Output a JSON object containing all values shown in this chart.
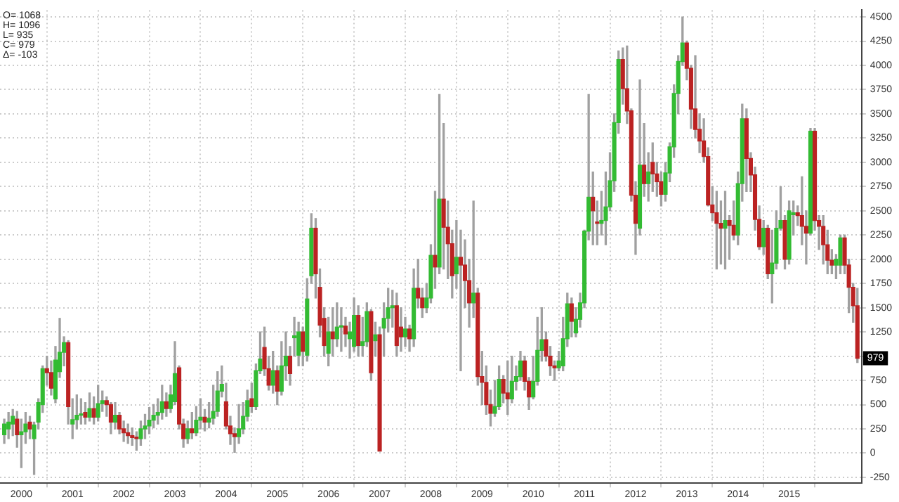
{
  "chart_data": {
    "type": "candlestick",
    "x": [
      "1999-09",
      "1999-10",
      "1999-11",
      "1999-12",
      "2000-01",
      "2000-02",
      "2000-03",
      "2000-04",
      "2000-05",
      "2000-06",
      "2000-07",
      "2000-08",
      "2000-09",
      "2000-10",
      "2000-11",
      "2000-12",
      "2001-01",
      "2001-02",
      "2001-03",
      "2001-04",
      "2001-05",
      "2001-06",
      "2001-07",
      "2001-08",
      "2001-09",
      "2001-10",
      "2001-11",
      "2001-12",
      "2002-01",
      "2002-02",
      "2002-03",
      "2002-04",
      "2002-05",
      "2002-06",
      "2002-07",
      "2002-08",
      "2002-09",
      "2002-10",
      "2002-11",
      "2002-12",
      "2003-01",
      "2003-02",
      "2003-03",
      "2003-04",
      "2003-05",
      "2003-06",
      "2003-07",
      "2003-08",
      "2003-09",
      "2003-10",
      "2003-11",
      "2003-12",
      "2004-01",
      "2004-02",
      "2004-03",
      "2004-04",
      "2004-05",
      "2004-06",
      "2004-07",
      "2004-08",
      "2004-09",
      "2004-10",
      "2004-11",
      "2004-12",
      "2005-01",
      "2005-02",
      "2005-03",
      "2005-04",
      "2005-05",
      "2005-06",
      "2005-07",
      "2005-08",
      "2005-09",
      "2005-10",
      "2005-11",
      "2005-12",
      "2006-01",
      "2006-02",
      "2006-03",
      "2006-04",
      "2006-05",
      "2006-06",
      "2006-07",
      "2006-08",
      "2006-09",
      "2006-10",
      "2006-11",
      "2006-12",
      "2007-01",
      "2007-02",
      "2007-03",
      "2007-04",
      "2007-05",
      "2007-06",
      "2007-07",
      "2007-08",
      "2007-09",
      "2007-10",
      "2007-11",
      "2007-12",
      "2008-01",
      "2008-02",
      "2008-03",
      "2008-04",
      "2008-05",
      "2008-06",
      "2008-07",
      "2008-08",
      "2008-09",
      "2008-10",
      "2008-11",
      "2008-12",
      "2009-01",
      "2009-02",
      "2009-03",
      "2009-04",
      "2009-05",
      "2009-06",
      "2009-07",
      "2009-08",
      "2009-09",
      "2009-10",
      "2009-11",
      "2009-12",
      "2010-01",
      "2010-02",
      "2010-03",
      "2010-04",
      "2010-05",
      "2010-06",
      "2010-07",
      "2010-08",
      "2010-09",
      "2010-10",
      "2010-11",
      "2010-12",
      "2011-01",
      "2011-02",
      "2011-03",
      "2011-04",
      "2011-05",
      "2011-06",
      "2011-07",
      "2011-08",
      "2011-09",
      "2011-10",
      "2011-11",
      "2011-12",
      "2012-01",
      "2012-02",
      "2012-03",
      "2012-04",
      "2012-05",
      "2012-06",
      "2012-07",
      "2012-08",
      "2012-09",
      "2012-10",
      "2012-11",
      "2012-12",
      "2013-01",
      "2013-02",
      "2013-03",
      "2013-04",
      "2013-05",
      "2013-06",
      "2013-07",
      "2013-08",
      "2013-09",
      "2013-10",
      "2013-11",
      "2013-12",
      "2014-01",
      "2014-02",
      "2014-03",
      "2014-04",
      "2014-05",
      "2014-06",
      "2014-07",
      "2014-08",
      "2014-09",
      "2014-10",
      "2014-11",
      "2014-12",
      "2015-01",
      "2015-02",
      "2015-03",
      "2015-04",
      "2015-05",
      "2015-06",
      "2015-07",
      "2015-08",
      "2015-09",
      "2015-10",
      "2015-11",
      "2015-12",
      "2016-01",
      "2016-02",
      "2016-03",
      "2016-04",
      "2016-05"
    ],
    "ohlc": [
      [
        190,
        350,
        100,
        300
      ],
      [
        250,
        420,
        150,
        320
      ],
      [
        300,
        450,
        180,
        380
      ],
      [
        350,
        430,
        60,
        190
      ],
      [
        190,
        350,
        -150,
        220
      ],
      [
        220,
        420,
        100,
        300
      ],
      [
        320,
        380,
        150,
        250
      ],
      [
        150,
        320,
        -220,
        290
      ],
      [
        320,
        560,
        250,
        520
      ],
      [
        500,
        900,
        420,
        870
      ],
      [
        870,
        1000,
        700,
        830
      ],
      [
        830,
        950,
        600,
        670
      ],
      [
        560,
        1100,
        520,
        960
      ],
      [
        840,
        1390,
        780,
        1040
      ],
      [
        1040,
        1200,
        900,
        1140
      ],
      [
        1140,
        1160,
        300,
        480
      ],
      [
        300,
        560,
        150,
        345
      ],
      [
        345,
        600,
        250,
        390
      ],
      [
        390,
        560,
        300,
        400
      ],
      [
        420,
        520,
        300,
        370
      ],
      [
        370,
        620,
        330,
        460
      ],
      [
        460,
        580,
        300,
        370
      ],
      [
        370,
        700,
        330,
        510
      ],
      [
        510,
        640,
        430,
        540
      ],
      [
        540,
        580,
        380,
        500
      ],
      [
        500,
        520,
        200,
        320
      ],
      [
        320,
        520,
        250,
        390
      ],
      [
        390,
        420,
        200,
        250
      ],
      [
        250,
        330,
        120,
        210
      ],
      [
        210,
        300,
        100,
        180
      ],
      [
        180,
        260,
        80,
        160
      ],
      [
        160,
        220,
        30,
        150
      ],
      [
        150,
        330,
        80,
        250
      ],
      [
        250,
        400,
        150,
        280
      ],
      [
        280,
        470,
        200,
        340
      ],
      [
        340,
        500,
        260,
        390
      ],
      [
        390,
        560,
        300,
        420
      ],
      [
        420,
        700,
        350,
        530
      ],
      [
        530,
        620,
        380,
        460
      ],
      [
        460,
        700,
        420,
        600
      ],
      [
        530,
        1150,
        500,
        820
      ],
      [
        880,
        900,
        250,
        300
      ],
      [
        300,
        350,
        60,
        150
      ],
      [
        150,
        330,
        100,
        250
      ],
      [
        250,
        420,
        150,
        210
      ],
      [
        210,
        480,
        180,
        340
      ],
      [
        340,
        560,
        250,
        370
      ],
      [
        370,
        450,
        230,
        320
      ],
      [
        320,
        520,
        260,
        360
      ],
      [
        360,
        700,
        300,
        430
      ],
      [
        430,
        840,
        380,
        640
      ],
      [
        640,
        900,
        580,
        710
      ],
      [
        530,
        720,
        250,
        280
      ],
      [
        280,
        380,
        90,
        200
      ],
      [
        200,
        260,
        0,
        170
      ],
      [
        170,
        500,
        100,
        250
      ],
      [
        250,
        520,
        200,
        380
      ],
      [
        380,
        650,
        330,
        540
      ],
      [
        560,
        720,
        420,
        480
      ],
      [
        480,
        920,
        450,
        850
      ],
      [
        850,
        1250,
        820,
        970
      ],
      [
        1090,
        1300,
        800,
        870
      ],
      [
        870,
        1000,
        650,
        700
      ],
      [
        700,
        1050,
        620,
        850
      ],
      [
        850,
        900,
        500,
        640
      ],
      [
        640,
        1150,
        600,
        900
      ],
      [
        900,
        1250,
        750,
        1000
      ],
      [
        1000,
        1100,
        700,
        820
      ],
      [
        1190,
        1400,
        1000,
        1210
      ],
      [
        1010,
        1350,
        900,
        1250
      ],
      [
        1250,
        1300,
        900,
        1050
      ],
      [
        1010,
        1800,
        950,
        1590
      ],
      [
        1830,
        2470,
        1750,
        2320
      ],
      [
        2320,
        2420,
        1600,
        1850
      ],
      [
        1710,
        1900,
        1200,
        1320
      ],
      [
        1390,
        1500,
        1000,
        1110
      ],
      [
        1030,
        1400,
        900,
        1250
      ],
      [
        1250,
        1500,
        1000,
        1180
      ],
      [
        1180,
        1550,
        1100,
        1300
      ],
      [
        1300,
        1500,
        1050,
        1310
      ],
      [
        1310,
        1400,
        1100,
        1230
      ],
      [
        1180,
        1350,
        980,
        1250
      ],
      [
        1100,
        1600,
        1050,
        1420
      ],
      [
        1420,
        1520,
        1000,
        1110
      ],
      [
        1110,
        1400,
        1000,
        1150
      ],
      [
        1150,
        1550,
        1100,
        1460
      ],
      [
        1460,
        1480,
        750,
        830
      ],
      [
        1160,
        1350,
        1000,
        1220
      ],
      [
        1220,
        1300,
        20,
        20
      ],
      [
        1290,
        1550,
        1000,
        1390
      ],
      [
        1390,
        1700,
        1250,
        1500
      ],
      [
        1500,
        1680,
        1300,
        1520
      ],
      [
        1520,
        1650,
        1000,
        1110
      ],
      [
        1300,
        1500,
        1050,
        1200
      ],
      [
        1200,
        1400,
        1100,
        1280
      ],
      [
        1280,
        1320,
        1050,
        1180
      ],
      [
        1180,
        1900,
        1100,
        1700
      ],
      [
        1700,
        2000,
        1500,
        1600
      ],
      [
        1600,
        1700,
        1400,
        1500
      ],
      [
        1500,
        1750,
        1450,
        1600
      ],
      [
        1600,
        2150,
        1550,
        2040
      ],
      [
        2040,
        2700,
        1700,
        1920
      ],
      [
        1920,
        3700,
        1850,
        2620
      ],
      [
        2620,
        3400,
        1900,
        2330
      ],
      [
        2330,
        2600,
        1800,
        2160
      ],
      [
        2160,
        2300,
        1600,
        1830
      ],
      [
        1850,
        2400,
        1700,
        2020
      ],
      [
        2020,
        2300,
        850,
        1940
      ],
      [
        1940,
        2200,
        1500,
        1780
      ],
      [
        1780,
        2000,
        1300,
        1550
      ],
      [
        1550,
        2600,
        1400,
        1650
      ],
      [
        1650,
        1700,
        700,
        790
      ],
      [
        790,
        1050,
        500,
        730
      ],
      [
        730,
        900,
        400,
        500
      ],
      [
        500,
        650,
        280,
        410
      ],
      [
        410,
        750,
        380,
        480
      ],
      [
        480,
        900,
        450,
        760
      ],
      [
        760,
        800,
        520,
        620
      ],
      [
        620,
        950,
        400,
        560
      ],
      [
        560,
        1000,
        520,
        740
      ],
      [
        740,
        900,
        650,
        790
      ],
      [
        790,
        1050,
        750,
        950
      ],
      [
        950,
        1000,
        650,
        740
      ],
      [
        740,
        780,
        450,
        580
      ],
      [
        580,
        1000,
        560,
        740
      ],
      [
        740,
        1400,
        700,
        1060
      ],
      [
        1060,
        1500,
        950,
        1170
      ],
      [
        1170,
        1250,
        950,
        1000
      ],
      [
        1000,
        1100,
        800,
        900
      ],
      [
        900,
        950,
        750,
        880
      ],
      [
        880,
        1050,
        850,
        950
      ],
      [
        900,
        1400,
        850,
        1180
      ],
      [
        1180,
        1650,
        1100,
        1540
      ],
      [
        1540,
        1600,
        1200,
        1360
      ],
      [
        1240,
        1500,
        1200,
        1380
      ],
      [
        1380,
        1650,
        1300,
        1550
      ],
      [
        1550,
        2300,
        1500,
        2290
      ],
      [
        2290,
        3700,
        2200,
        2640
      ],
      [
        2640,
        2900,
        2150,
        2500
      ],
      [
        2380,
        2600,
        2150,
        2370
      ],
      [
        2370,
        2700,
        2250,
        2400
      ],
      [
        2400,
        2900,
        2150,
        2540
      ],
      [
        2540,
        3100,
        2500,
        2810
      ],
      [
        2810,
        3500,
        2700,
        3410
      ],
      [
        3410,
        4150,
        3300,
        4060
      ],
      [
        4060,
        4180,
        3600,
        3760
      ],
      [
        3760,
        4200,
        3400,
        3530
      ],
      [
        3530,
        3550,
        2600,
        2660
      ],
      [
        2660,
        2800,
        2050,
        2370
      ],
      [
        2320,
        3850,
        2250,
        2970
      ],
      [
        2970,
        3400,
        2650,
        2780
      ],
      [
        2780,
        3100,
        2600,
        2900
      ],
      [
        3000,
        3200,
        2700,
        2880
      ],
      [
        2880,
        3000,
        2650,
        2800
      ],
      [
        2800,
        2900,
        2550,
        2670
      ],
      [
        2670,
        3000,
        2600,
        2890
      ],
      [
        2890,
        3200,
        2800,
        3160
      ],
      [
        3160,
        3800,
        3050,
        3710
      ],
      [
        3710,
        4100,
        3500,
        4040
      ],
      [
        4040,
        4500,
        4000,
        4230
      ],
      [
        4230,
        4250,
        3850,
        3970
      ],
      [
        3970,
        4000,
        3350,
        3550
      ],
      [
        3550,
        4100,
        3250,
        3340
      ],
      [
        3340,
        3500,
        3100,
        3220
      ],
      [
        3220,
        3450,
        3000,
        3060
      ],
      [
        3060,
        3150,
        2550,
        2560
      ],
      [
        2560,
        2750,
        2400,
        2480
      ],
      [
        2480,
        2700,
        1900,
        2370
      ],
      [
        2370,
        2600,
        1950,
        2320
      ],
      [
        2320,
        2700,
        1900,
        2400
      ],
      [
        2400,
        2450,
        2000,
        2350
      ],
      [
        2350,
        2600,
        2200,
        2250
      ],
      [
        2250,
        2900,
        2150,
        2780
      ],
      [
        2780,
        3600,
        2600,
        3450
      ],
      [
        3450,
        3550,
        2700,
        3040
      ],
      [
        3040,
        3100,
        2700,
        2870
      ],
      [
        2870,
        2950,
        2300,
        2410
      ],
      [
        2410,
        2550,
        2100,
        2130
      ],
      [
        2130,
        2400,
        2050,
        2320
      ],
      [
        2320,
        2350,
        1800,
        1850
      ],
      [
        1850,
        2300,
        1550,
        1960
      ],
      [
        1960,
        2500,
        1900,
        2320
      ],
      [
        2320,
        2750,
        2300,
        2400
      ],
      [
        2400,
        2450,
        1900,
        2000
      ],
      [
        2000,
        2600,
        1950,
        2500
      ],
      [
        2460,
        2600,
        2250,
        2480
      ],
      [
        2480,
        2550,
        2350,
        2450
      ],
      [
        2450,
        2850,
        2150,
        2340
      ],
      [
        2340,
        2500,
        1950,
        2270
      ],
      [
        2270,
        3350,
        2250,
        3320
      ],
      [
        3320,
        3350,
        2300,
        2400
      ],
      [
        2400,
        2450,
        2100,
        2340
      ],
      [
        2340,
        2450,
        1950,
        2150
      ],
      [
        2150,
        2300,
        1850,
        1990
      ],
      [
        1990,
        2100,
        1850,
        1940
      ],
      [
        1940,
        2050,
        1800,
        2000
      ],
      [
        1940,
        2250,
        1850,
        2220
      ],
      [
        2220,
        2250,
        1850,
        1940
      ],
      [
        1940,
        2000,
        1450,
        1710
      ],
      [
        1710,
        1750,
        1350,
        1520
      ],
      [
        1520,
        1700,
        935,
        979
      ]
    ],
    "colors": [
      "#33bb33",
      "#33bb33",
      "#33bb33",
      "#bb2222",
      "#33bb33",
      "#33bb33",
      "#bb2222",
      "#33bb33",
      "#33bb33",
      "#33bb33",
      "#bb2222",
      "#bb2222",
      "#33bb33",
      "#33bb33",
      "#33bb33",
      "#bb2222",
      "#33bb33",
      "#33bb33",
      "#33bb33",
      "#bb2222",
      "#33bb33",
      "#bb2222",
      "#33bb33",
      "#33bb33",
      "#bb2222",
      "#bb2222",
      "#33bb33",
      "#bb2222",
      "#bb2222",
      "#bb2222",
      "#bb2222",
      "#bb2222",
      "#33bb33",
      "#33bb33",
      "#33bb33",
      "#33bb33",
      "#33bb33",
      "#33bb33",
      "#bb2222",
      "#33bb33",
      "#33bb33",
      "#bb2222",
      "#bb2222",
      "#33bb33",
      "#bb2222",
      "#33bb33",
      "#33bb33",
      "#bb2222",
      "#33bb33",
      "#33bb33",
      "#33bb33",
      "#33bb33",
      "#bb2222",
      "#bb2222",
      "#bb2222",
      "#33bb33",
      "#33bb33",
      "#33bb33",
      "#bb2222",
      "#33bb33",
      "#33bb33",
      "#bb2222",
      "#bb2222",
      "#33bb33",
      "#bb2222",
      "#33bb33",
      "#33bb33",
      "#bb2222",
      "#33bb33",
      "#33bb33",
      "#bb2222",
      "#33bb33",
      "#33bb33",
      "#bb2222",
      "#bb2222",
      "#bb2222",
      "#33bb33",
      "#bb2222",
      "#33bb33",
      "#33bb33",
      "#bb2222",
      "#33bb33",
      "#33bb33",
      "#bb2222",
      "#33bb33",
      "#33bb33",
      "#bb2222",
      "#33bb33",
      "#bb2222",
      "#33bb33",
      "#33bb33",
      "#33bb33",
      "#bb2222",
      "#bb2222",
      "#33bb33",
      "#bb2222",
      "#33bb33",
      "#bb2222",
      "#bb2222",
      "#33bb33",
      "#33bb33",
      "#bb2222",
      "#33bb33",
      "#bb2222",
      "#bb2222",
      "#bb2222",
      "#33bb33",
      "#bb2222",
      "#bb2222",
      "#bb2222",
      "#33bb33",
      "#bb2222",
      "#bb2222",
      "#bb2222",
      "#bb2222",
      "#33bb33",
      "#33bb33",
      "#bb2222",
      "#bb2222",
      "#33bb33",
      "#33bb33",
      "#33bb33",
      "#bb2222",
      "#bb2222",
      "#33bb33",
      "#33bb33",
      "#33bb33",
      "#bb2222",
      "#bb2222",
      "#bb2222",
      "#33bb33",
      "#33bb33",
      "#33bb33",
      "#bb2222",
      "#33bb33",
      "#33bb33",
      "#33bb33",
      "#33bb33",
      "#bb2222",
      "#bb2222",
      "#33bb33",
      "#33bb33",
      "#33bb33",
      "#33bb33",
      "#33bb33",
      "#bb2222",
      "#bb2222",
      "#bb2222",
      "#bb2222",
      "#33bb33",
      "#bb2222",
      "#33bb33",
      "#bb2222",
      "#bb2222",
      "#bb2222",
      "#33bb33",
      "#33bb33",
      "#33bb33",
      "#33bb33",
      "#33bb33",
      "#bb2222",
      "#bb2222",
      "#bb2222",
      "#bb2222",
      "#bb2222",
      "#bb2222",
      "#bb2222",
      "#bb2222",
      "#bb2222",
      "#33bb33",
      "#bb2222",
      "#bb2222",
      "#33bb33",
      "#33bb33",
      "#bb2222",
      "#bb2222",
      "#bb2222",
      "#bb2222",
      "#33bb33",
      "#bb2222",
      "#33bb33",
      "#33bb33",
      "#33bb33",
      "#bb2222",
      "#33bb33",
      "#33bb33",
      "#bb2222",
      "#bb2222",
      "#bb2222",
      "#33bb33",
      "#bb2222",
      "#bb2222",
      "#bb2222",
      "#bb2222",
      "#bb2222",
      "#33bb33",
      "#33bb33",
      "#bb2222",
      "#bb2222",
      "#bb2222",
      "#bb2222"
    ],
    "xlim": [
      "1999-08",
      "2016-06"
    ],
    "xticks": [
      "2000",
      "2001",
      "2002",
      "2003",
      "2004",
      "2005",
      "2006",
      "2007",
      "2008",
      "2009",
      "2010",
      "2011",
      "2012",
      "2013",
      "2014",
      "2015"
    ],
    "ylim": [
      -310,
      4570
    ],
    "yticks": [
      -250,
      0,
      250,
      500,
      750,
      {
        "value": 1000,
        "label": null
      },
      1250,
      1500,
      1750,
      2000,
      2250,
      2500,
      2750,
      3000,
      3250,
      3500,
      3750,
      4000,
      4250,
      4500
    ],
    "grid": true,
    "annotations": [
      "O= 1068",
      "H= 1096",
      "L= 935",
      "C= 979",
      "Δ= -103",
      {
        "text": "979",
        "y": 979
      }
    ]
  }
}
